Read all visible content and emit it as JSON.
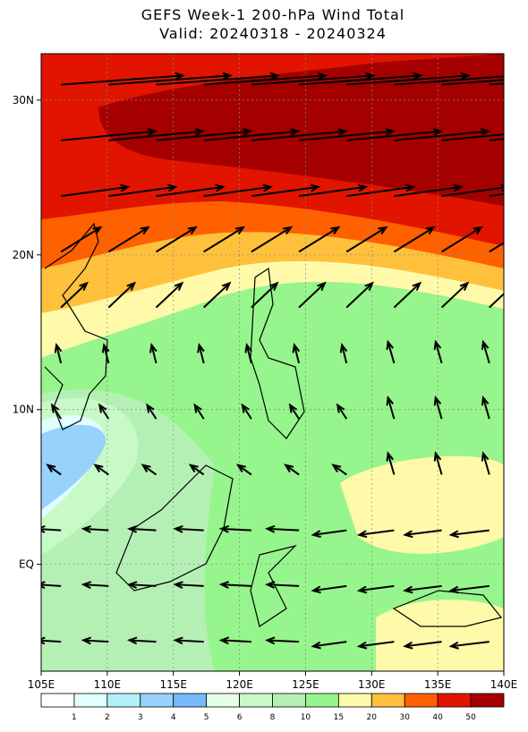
{
  "title": "GEFS Week-1 200-hPa Wind Total",
  "subtitle": "Valid: 20240318 - 20240324",
  "map": {
    "lonlim": [
      105,
      140
    ],
    "latlim": [
      -6.9,
      33
    ],
    "lonticks": [
      {
        "value": 105,
        "label": "105E"
      },
      {
        "value": 110,
        "label": "110E"
      },
      {
        "value": 115,
        "label": "115E"
      },
      {
        "value": 120,
        "label": "120E"
      },
      {
        "value": 125,
        "label": "125E"
      },
      {
        "value": 130,
        "label": "130E"
      },
      {
        "value": 135,
        "label": "135E"
      },
      {
        "value": 140,
        "label": "140E"
      }
    ],
    "latticks": [
      {
        "value": 0,
        "label": "EQ"
      },
      {
        "value": 10,
        "label": "10N"
      },
      {
        "value": 20,
        "label": "20N"
      },
      {
        "value": 30,
        "label": "30N"
      }
    ]
  },
  "colorbar": {
    "labels": [
      1,
      2,
      3,
      4,
      5,
      6,
      8,
      10,
      15,
      20,
      30,
      40,
      50
    ],
    "colors": [
      "#ffffff",
      "#e1ffff",
      "#b4f0fa",
      "#96d2fa",
      "#78b9fa",
      "#e6ffe6",
      "#c8fac8",
      "#b4f0b4",
      "#96f58c",
      "#fffaaa",
      "#ffc03c",
      "#ff6000",
      "#e11400",
      "#a50000"
    ]
  }
}
